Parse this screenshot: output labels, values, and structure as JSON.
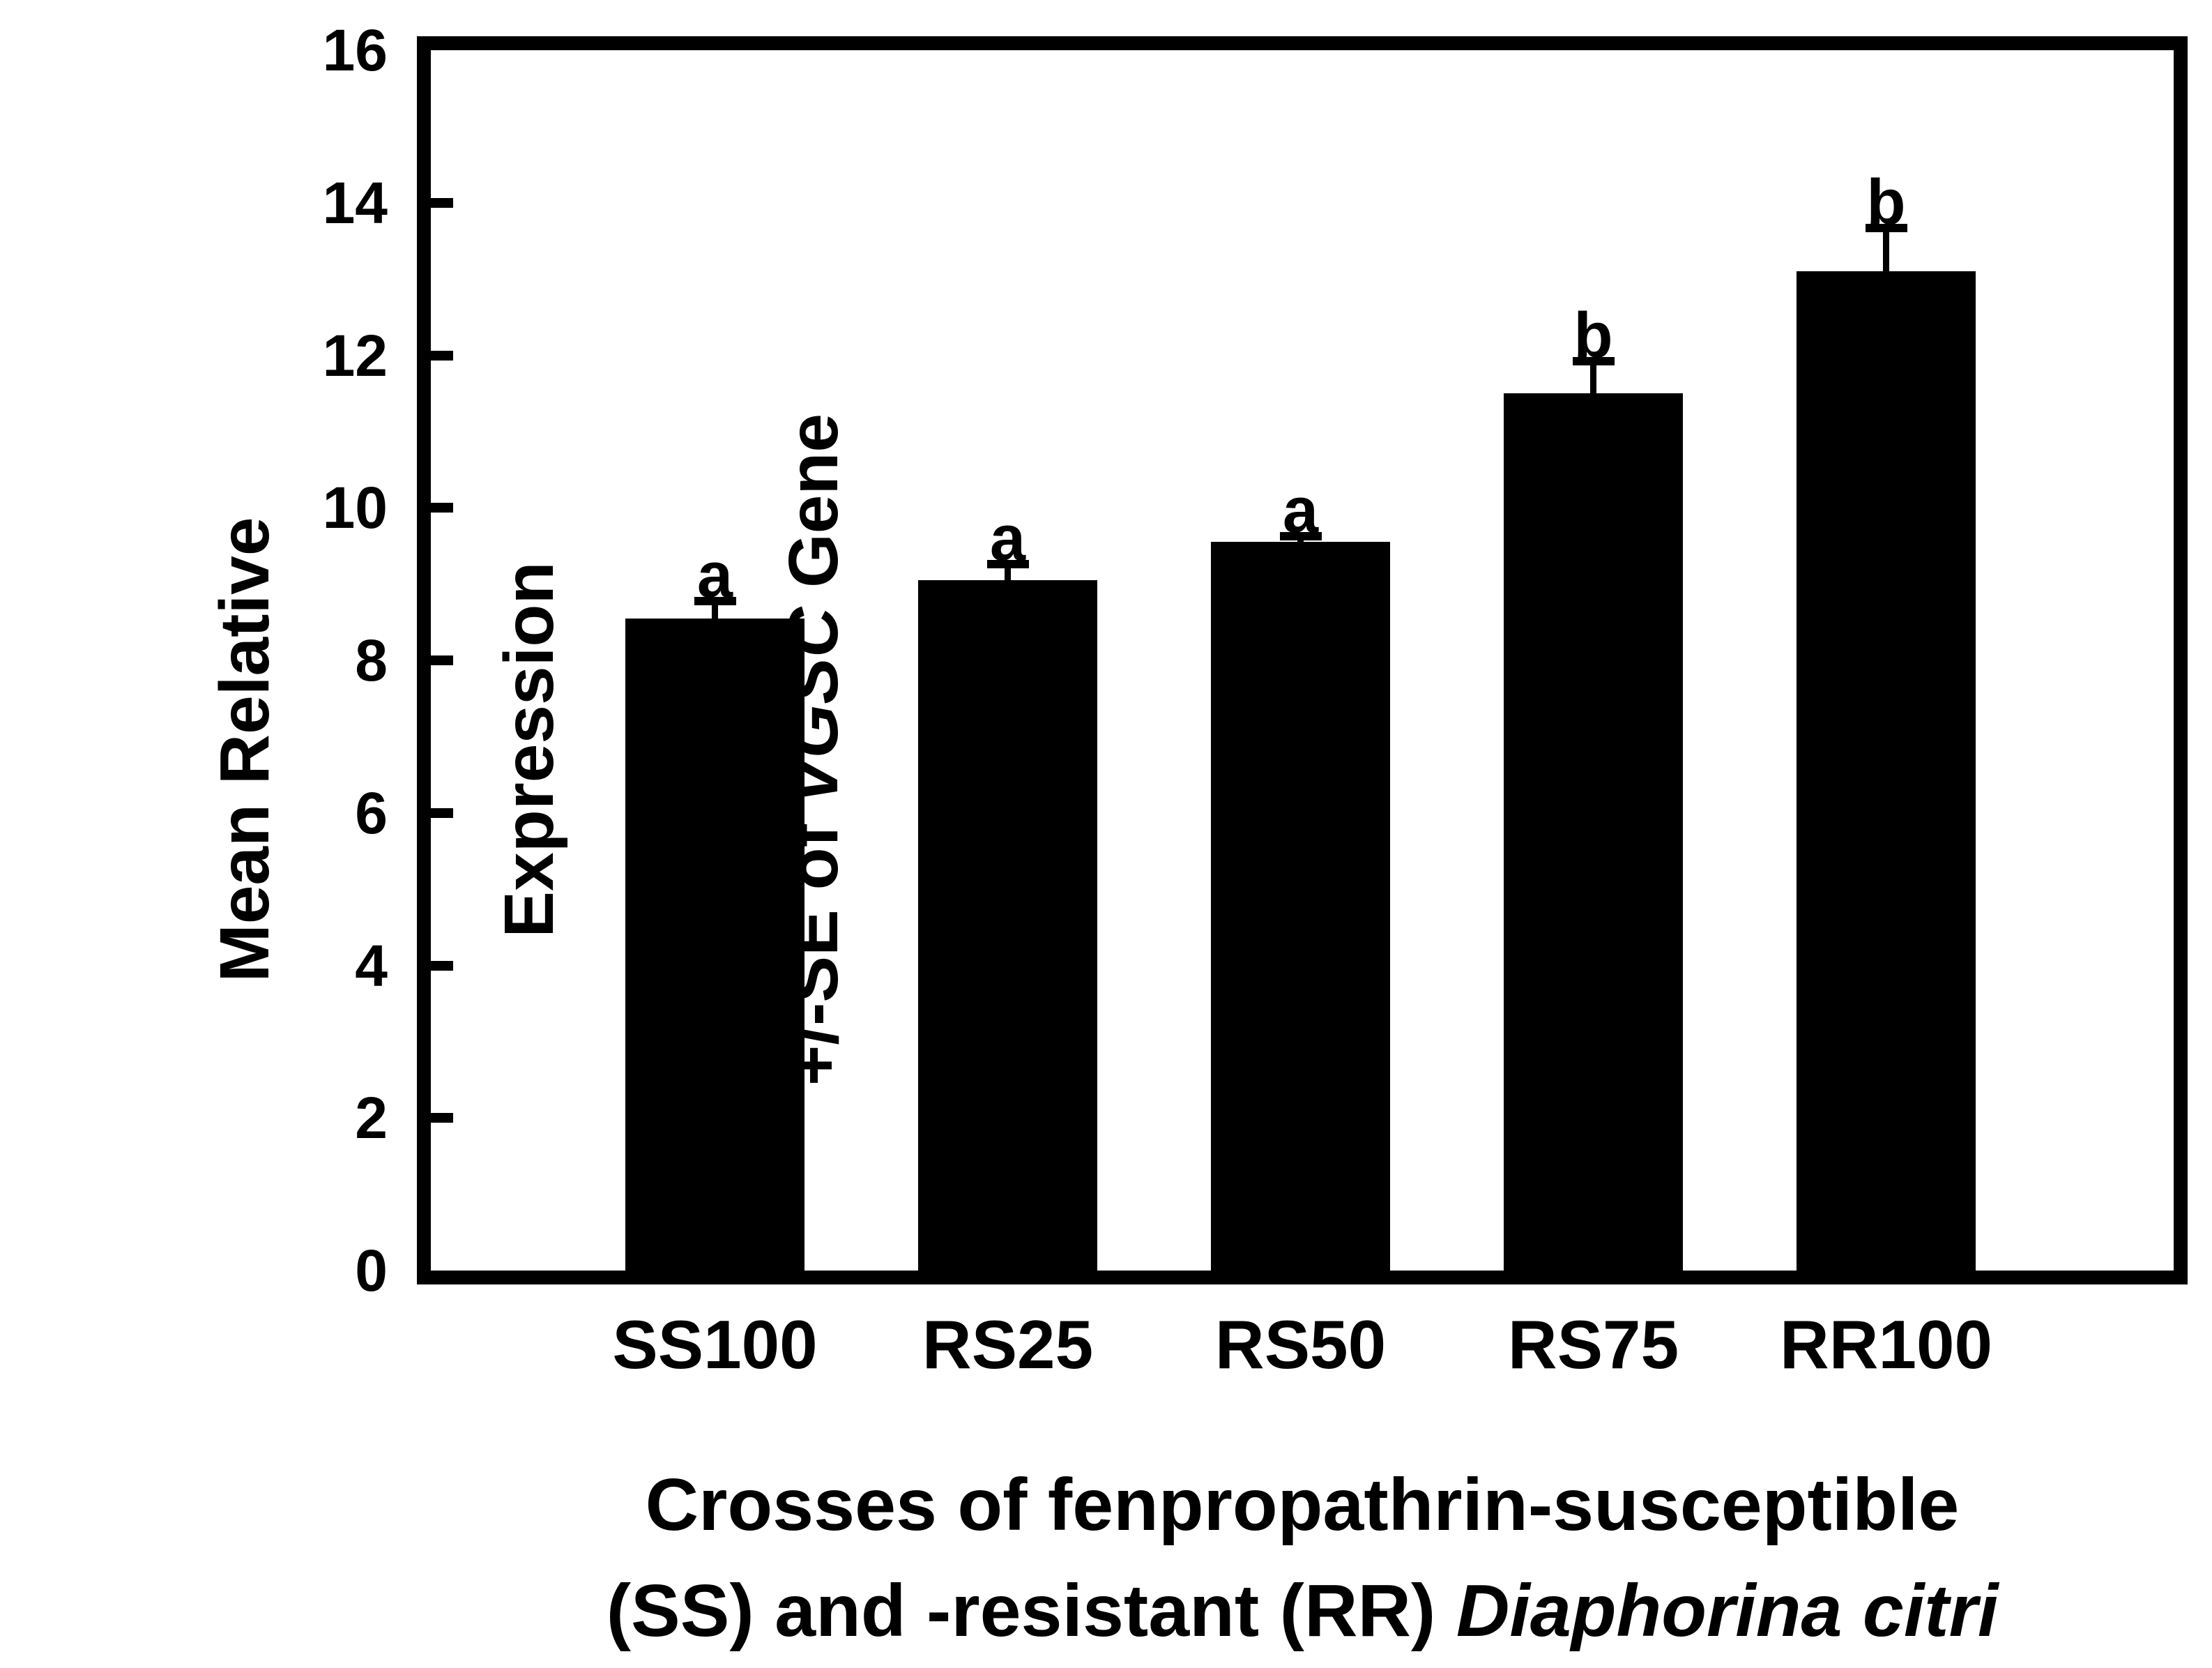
{
  "chart_data": {
    "type": "bar",
    "categories": [
      "SS100",
      "RS25",
      "RS50",
      "RS75",
      "RR100"
    ],
    "values": [
      8.55,
      9.05,
      9.55,
      11.5,
      13.1
    ],
    "errors_se": [
      0.23,
      0.21,
      0.08,
      0.42,
      0.57
    ],
    "sig_letters": [
      "a",
      "a",
      "a",
      "b",
      "b"
    ],
    "yticks": [
      0,
      2,
      4,
      6,
      8,
      10,
      12,
      14,
      16
    ],
    "ylim": [
      0,
      16
    ],
    "grid": false,
    "legend_position": "none",
    "title": "",
    "ylabel": "Mean Relative Expression +/-SE of VGSC Gene",
    "xlabel": "Crosses of fenpropathrin-susceptible (SS) and -resistant (RR) Diaphorina citri",
    "bar_color": "#000000",
    "error_bar_direction": "upper-only"
  },
  "ylabel": {
    "line1": "Mean Relative",
    "line2": "Expression",
    "line3_prefix": "+/-SE of ",
    "line3_italic": "VGSC",
    "line3_suffix": " Gene"
  },
  "xlabel": {
    "line1": "Crosses of fenpropathrin-susceptible",
    "line2_prefix": "(SS) and -resistant (RR) ",
    "line2_italic": "Diaphorina citri"
  },
  "colors": {
    "bar": "#000000",
    "text": "#000000",
    "background": "#ffffff"
  }
}
